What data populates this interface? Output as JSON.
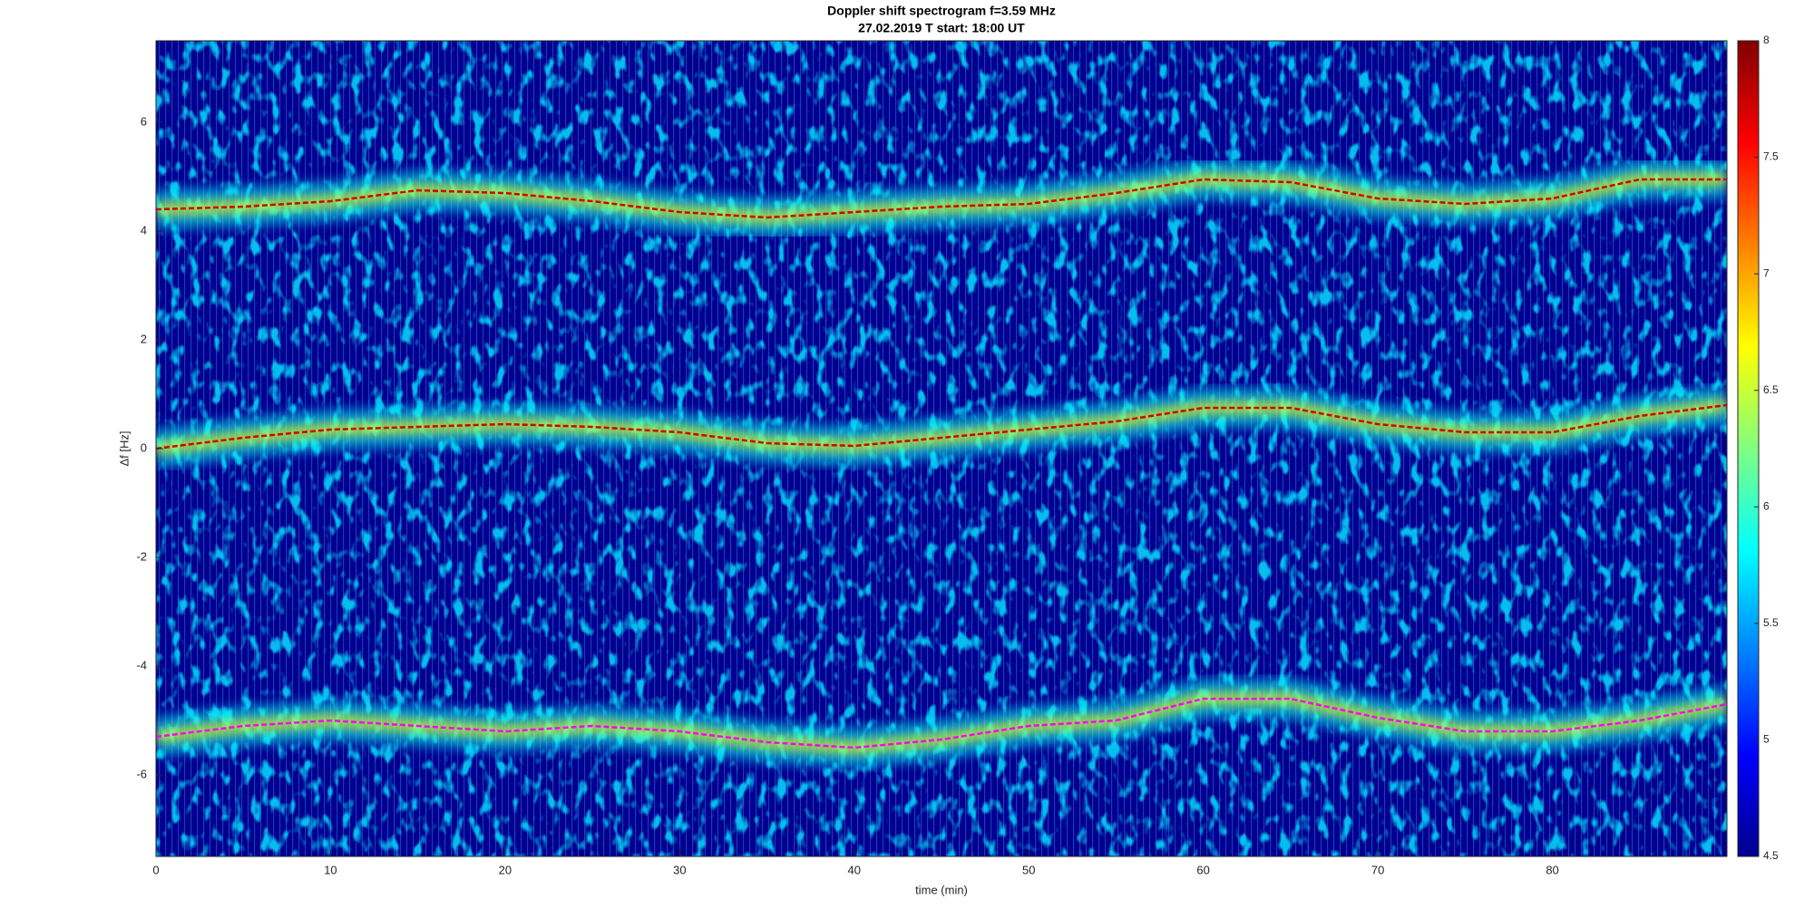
{
  "chart_data": {
    "type": "spectrogram",
    "title": "Doppler shift spectrogram f=3.59 MHz",
    "subtitle": "27.02.2019    T start: 18:00 UT",
    "x_label": "time (min)",
    "y_label": "Δf [Hz]",
    "x": [
      0,
      5,
      10,
      15,
      20,
      25,
      30,
      35,
      40,
      45,
      50,
      55,
      60,
      65,
      70,
      75,
      80,
      85,
      90
    ],
    "series": [
      {
        "color": "#d40000",
        "values": [
          4.4,
          4.45,
          4.55,
          4.75,
          4.7,
          4.55,
          4.35,
          4.25,
          4.35,
          4.45,
          4.5,
          4.7,
          4.95,
          4.9,
          4.6,
          4.5,
          4.6,
          4.95,
          4.95
        ]
      },
      {
        "color": "#d40000",
        "values": [
          0.0,
          0.2,
          0.35,
          0.4,
          0.45,
          0.4,
          0.3,
          0.1,
          0.05,
          0.2,
          0.35,
          0.5,
          0.75,
          0.75,
          0.45,
          0.3,
          0.3,
          0.6,
          0.8
        ]
      },
      {
        "color": "#ff00ff",
        "values": [
          -5.3,
          -5.1,
          -5.0,
          -5.1,
          -5.2,
          -5.1,
          -5.2,
          -5.4,
          -5.5,
          -5.35,
          -5.1,
          -5.0,
          -4.6,
          -4.6,
          -4.95,
          -5.2,
          -5.2,
          -5.0,
          -4.7
        ]
      }
    ],
    "xlim": [
      0,
      90
    ],
    "xticks": [
      0,
      10,
      20,
      30,
      40,
      50,
      60,
      70,
      80
    ],
    "ylim": [
      -7.5,
      7.5
    ],
    "yticks": [
      -6,
      -4,
      -2,
      0,
      2,
      4,
      6
    ],
    "clim": [
      4.5,
      8
    ],
    "cticks": [
      4.5,
      5,
      5.5,
      6,
      6.5,
      7,
      7.5,
      8
    ],
    "colormap": [
      "#00008f",
      "#0000ff",
      "#0080ff",
      "#00ffff",
      "#80ff80",
      "#ffff00",
      "#ff8000",
      "#ff0000",
      "#800000"
    ]
  }
}
